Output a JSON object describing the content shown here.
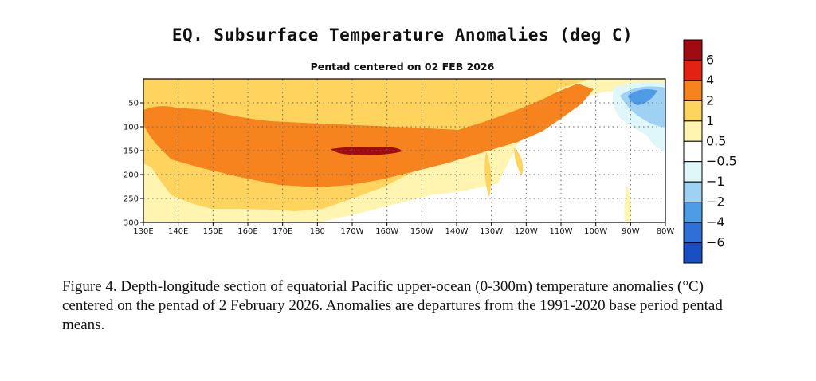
{
  "chart_data": {
    "type": "heatmap",
    "title": "EQ. Subsurface Temperature Anomalies (deg C)",
    "subtitle": "Pentad centered on 02 FEB 2026",
    "x_ticks": [
      "130E",
      "140E",
      "150E",
      "160E",
      "170E",
      "180",
      "170W",
      "160W",
      "150W",
      "140W",
      "130W",
      "120W",
      "110W",
      "100W",
      "90W",
      "80W"
    ],
    "y_ticks": [
      "50",
      "100",
      "150",
      "200",
      "250",
      "300"
    ],
    "y_tick_values": [
      50,
      100,
      150,
      200,
      250,
      300
    ],
    "xlim": [
      "130E",
      "80W"
    ],
    "ylim": [
      300,
      0
    ],
    "grid": true,
    "colorbar": {
      "labels": [
        "6",
        "4",
        "2",
        "1",
        "0.5",
        "−0.5",
        "−1",
        "−2",
        "−4",
        "−6"
      ],
      "colors": [
        "#a00a12",
        "#e42214",
        "#f7831f",
        "#ffd45e",
        "#fff4b0",
        "#ffffff",
        "#e0f7fa",
        "#9fd1f2",
        "#4e9ce6",
        "#2f6fd8",
        "#1a4fc4"
      ]
    },
    "anomaly_regions": [
      {
        "level": "0.5 to 1",
        "extent": "upper ocean across basin, 0-280 m, western and central Pacific"
      },
      {
        "level": "1 to 2",
        "extent": "130E-110W, mostly 0-260 m"
      },
      {
        "level": "2 to 4",
        "extent": "135E-110W, 60-210 m, shoaling eastward"
      },
      {
        "level": "4 to 6",
        "extent": "near 175W-155W, about 150-165 m"
      },
      {
        "level": "-0.5 to -2",
        "extent": "east of 95W, 30-130 m"
      }
    ]
  },
  "caption": "Figure 4. Depth-longitude section of equatorial Pacific upper-ocean (0-300m) temperature anomalies (°C) centered on the pentad of 2 February 2026. Anomalies are departures from the 1991-2020 base period pentad means."
}
